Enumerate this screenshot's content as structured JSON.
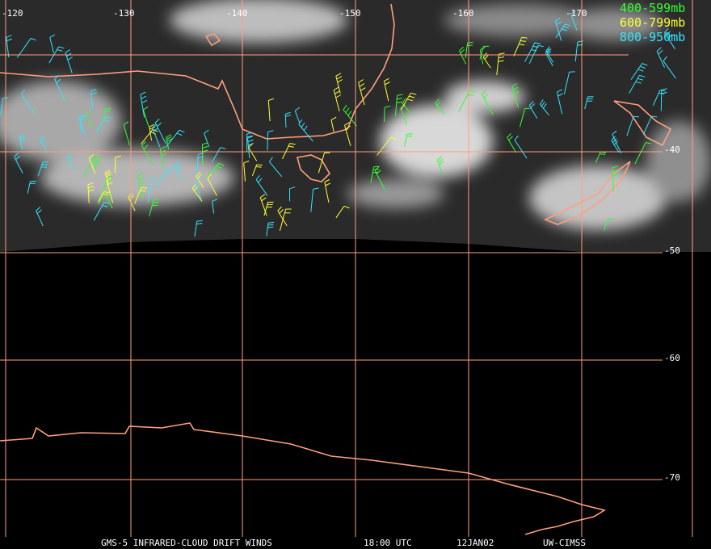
{
  "longitude_labels": [
    "-120",
    "-130",
    "-140",
    "-150",
    "-160",
    "-170"
  ],
  "latitude_labels": [
    "-40",
    "-50",
    "-60",
    "-70"
  ],
  "legend": [
    {
      "label": "400-599mb",
      "color": "#33ff33"
    },
    {
      "label": "600-799mb",
      "color": "#ffff33"
    },
    {
      "label": "800-950mb",
      "color": "#33e6ff"
    }
  ],
  "footer": [
    "GMS-5 INFRARED-CLOUD DRIFT WINDS",
    "18:00 UTC",
    "12JAN02",
    "UW-CIMSS"
  ]
}
